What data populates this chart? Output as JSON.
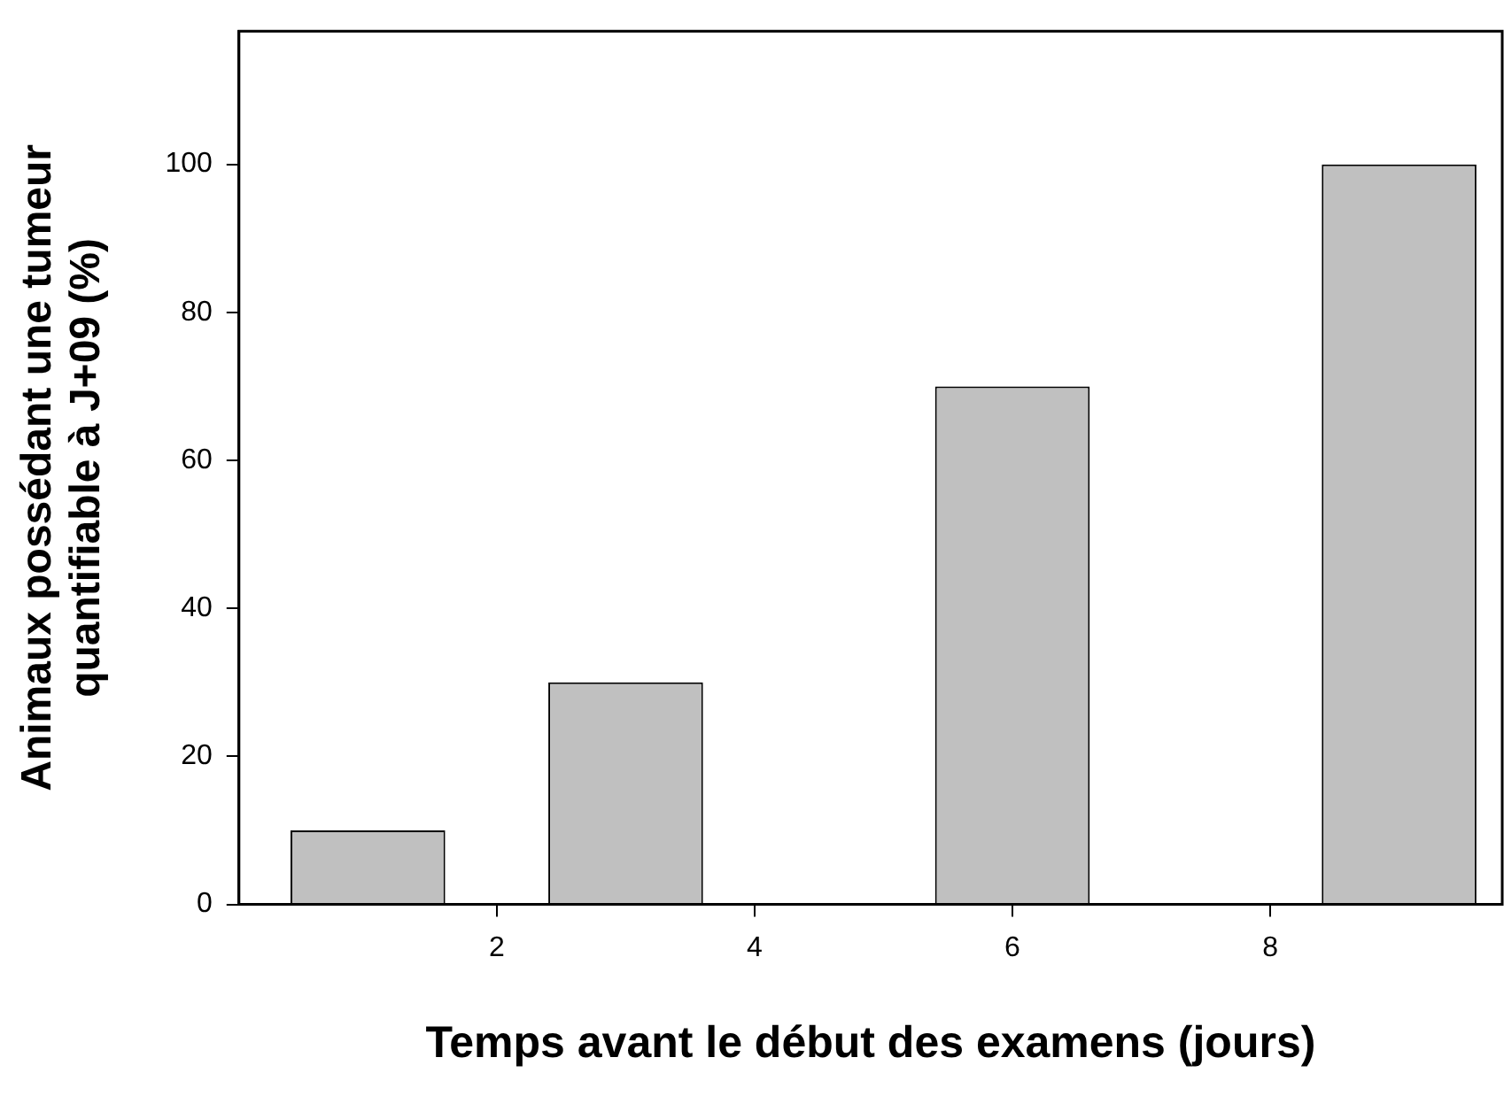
{
  "chart_data": {
    "type": "bar",
    "xlabel": "Temps avant le début des examens (jours)",
    "ylabel": "Animaux possédant une tumeur\nquantifiable à J+09 (%)",
    "x": [
      1,
      3,
      6,
      9
    ],
    "values": [
      10,
      30,
      70,
      100
    ],
    "color": "#c0c0c0",
    "xlim": [
      0,
      9.8
    ],
    "xticks": [
      2,
      4,
      6,
      8
    ],
    "ylim": [
      0,
      118
    ],
    "yticks": [
      0,
      20,
      40,
      60,
      80,
      100
    ],
    "grid": false,
    "legend": false
  }
}
